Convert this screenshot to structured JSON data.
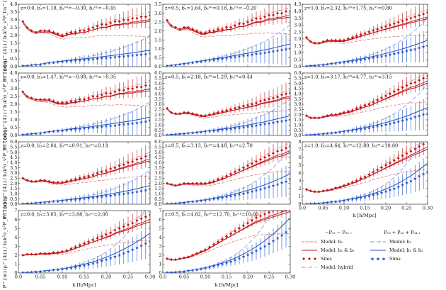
{
  "figure": {
    "x_axis_label": "k [h/Mpc]",
    "x_ticks": [
      "0.0",
      "0.05",
      "0.10",
      "0.15",
      "0.20",
      "0.25",
      "0.30"
    ],
    "y_ticks": [
      "0.0",
      "0.5",
      "1.0",
      "1.5",
      "2.0",
      "2.5",
      "3.0",
      "3.5",
      "4.0"
    ],
    "y_ticks_short": [
      "0.0",
      "0.5",
      "1.0",
      "1.5",
      "2.0",
      "2.5",
      "3.0",
      "3.5"
    ],
    "y_ticks_tall": [
      "0",
      "1",
      "2",
      "3",
      "4",
      "5",
      "6"
    ],
    "row_labels": [
      "P^{m}(μ^{4}) / b₁k²σ_v²P_lin^{dm}",
      "P^{m}(μ^{4}) / b₁k²σ_v²P_lin^{dm}",
      "P^{m}(μ^{4}) / b₁k²σ_v²P_lin^{dm}",
      "P^{m}(μ^{4}) / b₁k²σ_v²P_lin^{dm}"
    ],
    "panels": [
      {
        "label": "z=0.0,  b₁=1.18,  b₂⁰⁰=−0.39,  b₂⁰¹=−0.45",
        "row": 0,
        "col": 0
      },
      {
        "label": "z=0.5,  b₁=1.64,  b₂⁰⁰=0.18,  b₂⁰¹=−0.20",
        "row": 0,
        "col": 1
      },
      {
        "label": "z=1.0,  b₁=2.32,  b₂⁰⁰=1.75,  b₂⁰¹=0.80",
        "row": 0,
        "col": 2
      },
      {
        "label": "z=0.0,  b₁=1.47,  b₂⁰⁰=−0.08,  b₂⁰¹=−0.35",
        "row": 1,
        "col": 0
      },
      {
        "label": "z=0.5,  b₁=2.18,  b₂⁰⁰=1.29,  b₂⁰¹=0.44",
        "row": 1,
        "col": 1
      },
      {
        "label": "z=1.0,  b₁=3.17,  b₂⁰⁰=4.77,  b₂⁰¹=3.15",
        "row": 1,
        "col": 2
      },
      {
        "label": "z=0.0,  b₁=2.04,  b₂⁰⁰=0.91,  b₂⁰¹=0.14",
        "row": 2,
        "col": 0
      },
      {
        "label": "z=0.5,  b₁=3.13,  b₂⁰⁰=4.48,  b₂⁰¹=2.70",
        "row": 2,
        "col": 1
      },
      {
        "label": "z=1.0,  b₁=4.64,  b₂⁰⁰=12.80,  b₂⁰¹=10.80",
        "row": 2,
        "col": 2
      },
      {
        "label": "z=0.0,  b₁=3.05,  b₂⁰⁰=3.88,  b₂⁰¹=2.00",
        "row": 3,
        "col": 0
      },
      {
        "label": "z=0.5,  b₁=4.82,  b₂⁰⁰=12.70,  b₂⁰¹=10.00",
        "row": 3,
        "col": 1
      }
    ]
  },
  "legend": {
    "red_title": "−P₁₂ − P₀₃ :",
    "blue_title": "P₁₃ + P₂₂ + P₀₄ :",
    "red_items": [
      "Model: b₁",
      "Model: b₁ & b₂",
      "Sims",
      "Model: hybrid"
    ],
    "blue_items": [
      "Model: b₁",
      "Model: b₁ & b₂",
      "Sims"
    ],
    "colors": {
      "red": "#c0161c",
      "blue": "#1f4fc4",
      "red_light": "#e07a7a",
      "blue_light": "#7a9ae6"
    }
  },
  "chart_data": {
    "type": "line",
    "title": "",
    "xlabel": "k [h/Mpc]",
    "ylabel": "P^{m}(μ^{4}) / b₁k²σ_v²P_lin^{dm}",
    "xlim": [
      0.0,
      0.3
    ],
    "k_values": [
      0.01,
      0.02,
      0.03,
      0.04,
      0.05,
      0.06,
      0.07,
      0.08,
      0.09,
      0.1,
      0.11,
      0.12,
      0.13,
      0.14,
      0.15,
      0.16,
      0.17,
      0.18,
      0.19,
      0.2,
      0.21,
      0.22,
      0.23,
      0.24,
      0.25,
      0.26,
      0.27,
      0.28,
      0.29,
      0.3
    ],
    "panels": [
      {
        "id": "z0.0_b1.18",
        "ylim": [
          0,
          4
        ],
        "yticks": [
          0,
          0.5,
          1,
          1.5,
          2,
          2.5,
          3,
          3.5,
          4
        ],
        "red_sims": [
          2.9,
          2.5,
          2.3,
          2.2,
          2.3,
          2.3,
          2.3,
          2.2,
          2.1,
          2.0,
          2.1,
          2.2,
          2.2,
          2.3,
          2.3,
          2.4,
          2.5,
          2.6,
          2.7,
          2.7,
          2.8,
          2.9,
          2.9,
          3.0,
          3.0,
          3.1,
          3.1,
          3.2,
          3.2,
          3.3
        ],
        "blue_sims": [
          0.05,
          0.07,
          0.1,
          0.13,
          0.16,
          0.2,
          0.24,
          0.27,
          0.3,
          0.33,
          0.36,
          0.38,
          0.41,
          0.43,
          0.45,
          0.47,
          0.5,
          0.52,
          0.55,
          0.57,
          0.6,
          0.62,
          0.65,
          0.68,
          0.7,
          0.73,
          0.76,
          0.79,
          0.82,
          0.85
        ]
      },
      {
        "id": "z0.5_b1.64",
        "ylim": [
          0,
          3.5
        ],
        "yticks": [
          0,
          0.5,
          1,
          1.5,
          2,
          2.5,
          3,
          3.5
        ],
        "red_sims": [
          2.6,
          2.3,
          2.2,
          2.1,
          2.2,
          2.2,
          2.1,
          2.0,
          1.9,
          1.9,
          2.0,
          2.0,
          2.1,
          2.1,
          2.2,
          2.2,
          2.3,
          2.4,
          2.4,
          2.5,
          2.6,
          2.7,
          2.7,
          2.8,
          2.9,
          2.9,
          3.0,
          3.0,
          3.1,
          3.1
        ],
        "blue_sims": [
          0.05,
          0.08,
          0.1,
          0.14,
          0.17,
          0.2,
          0.24,
          0.27,
          0.3,
          0.33,
          0.36,
          0.39,
          0.42,
          0.45,
          0.48,
          0.52,
          0.55,
          0.58,
          0.62,
          0.65,
          0.68,
          0.72,
          0.75,
          0.79,
          0.82,
          0.86,
          0.9,
          0.94,
          0.98,
          1.02
        ]
      },
      {
        "id": "z1.0_b2.32",
        "ylim": [
          0,
          4.5
        ],
        "yticks": [
          0,
          0.5,
          1,
          1.5,
          2,
          2.5,
          3,
          3.5,
          4,
          4.5
        ],
        "red_sims": [
          2.1,
          1.8,
          1.7,
          1.7,
          1.8,
          1.9,
          1.9,
          1.9,
          1.9,
          1.9,
          2.0,
          2.1,
          2.2,
          2.3,
          2.4,
          2.5,
          2.6,
          2.7,
          2.8,
          2.9,
          3.0,
          3.1,
          3.2,
          3.3,
          3.4,
          3.5,
          3.6,
          3.7,
          3.8,
          3.9
        ],
        "blue_sims": [
          0.05,
          0.07,
          0.09,
          0.12,
          0.15,
          0.18,
          0.22,
          0.25,
          0.29,
          0.33,
          0.37,
          0.41,
          0.46,
          0.5,
          0.55,
          0.6,
          0.65,
          0.7,
          0.76,
          0.82,
          0.88,
          0.94,
          1.0,
          1.07,
          1.14,
          1.21,
          1.28,
          1.36,
          1.44,
          1.52
        ]
      },
      {
        "id": "z0.0_b1.47",
        "ylim": [
          0,
          4
        ],
        "yticks": [
          0,
          0.5,
          1,
          1.5,
          2,
          2.5,
          3,
          3.5,
          4
        ],
        "red_sims": [
          2.8,
          2.5,
          2.4,
          2.3,
          2.3,
          2.3,
          2.3,
          2.2,
          2.1,
          2.1,
          2.1,
          2.2,
          2.2,
          2.3,
          2.3,
          2.4,
          2.5,
          2.5,
          2.6,
          2.7,
          2.7,
          2.8,
          2.9,
          2.9,
          3.0,
          3.0,
          3.1,
          3.1,
          3.2,
          3.2
        ],
        "blue_sims": [
          0.05,
          0.08,
          0.1,
          0.13,
          0.16,
          0.2,
          0.23,
          0.26,
          0.29,
          0.32,
          0.35,
          0.38,
          0.4,
          0.43,
          0.46,
          0.48,
          0.51,
          0.54,
          0.57,
          0.6,
          0.63,
          0.66,
          0.69,
          0.72,
          0.75,
          0.78,
          0.82,
          0.86,
          0.9,
          0.94
        ]
      },
      {
        "id": "z0.5_b2.18",
        "ylim": [
          0,
          6
        ],
        "yticks": [
          0,
          0.5,
          1,
          1.5,
          2,
          2.5,
          3,
          3.5,
          4,
          4.5,
          5,
          5.5,
          6
        ],
        "red_sims": [
          2.6,
          2.2,
          2.1,
          2.1,
          2.2,
          2.2,
          2.1,
          2.0,
          1.9,
          1.9,
          2.0,
          2.1,
          2.2,
          2.3,
          2.4,
          2.5,
          2.6,
          2.7,
          2.8,
          2.9,
          3.0,
          3.1,
          3.3,
          3.4,
          3.5,
          3.6,
          3.7,
          3.9,
          4.0,
          4.1
        ],
        "blue_sims": [
          0.05,
          0.08,
          0.11,
          0.14,
          0.18,
          0.22,
          0.26,
          0.3,
          0.34,
          0.38,
          0.42,
          0.46,
          0.5,
          0.55,
          0.6,
          0.65,
          0.7,
          0.75,
          0.8,
          0.86,
          0.92,
          0.98,
          1.04,
          1.1,
          1.17,
          1.24,
          1.31,
          1.38,
          1.45,
          1.52
        ]
      },
      {
        "id": "z1.0_b3.17",
        "ylim": [
          0,
          6
        ],
        "yticks": [
          0,
          0.5,
          1,
          1.5,
          2,
          2.5,
          3,
          3.5,
          4,
          4.5,
          5,
          5.5,
          6
        ],
        "red_sims": [
          1.9,
          1.7,
          1.7,
          1.7,
          1.8,
          1.9,
          2.0,
          2.0,
          2.1,
          2.2,
          2.3,
          2.4,
          2.6,
          2.7,
          2.9,
          3.0,
          3.2,
          3.4,
          3.6,
          3.8,
          4.0,
          4.2,
          4.4,
          4.6,
          4.8,
          5.0,
          5.1,
          5.3,
          5.5,
          5.7
        ],
        "blue_sims": [
          0.05,
          0.07,
          0.1,
          0.13,
          0.16,
          0.2,
          0.24,
          0.28,
          0.33,
          0.38,
          0.43,
          0.49,
          0.55,
          0.61,
          0.68,
          0.75,
          0.82,
          0.9,
          0.98,
          1.06,
          1.15,
          1.24,
          1.34,
          1.44,
          1.55,
          1.66,
          1.78,
          1.9,
          2.02,
          2.15
        ]
      },
      {
        "id": "z0.0_b2.04",
        "ylim": [
          0,
          6
        ],
        "yticks": [
          0,
          0.5,
          1,
          1.5,
          2,
          2.5,
          3,
          3.5,
          4,
          4.5,
          5,
          5.5,
          6
        ],
        "red_sims": [
          2.5,
          2.3,
          2.2,
          2.2,
          2.3,
          2.3,
          2.2,
          2.1,
          2.1,
          2.1,
          2.2,
          2.3,
          2.4,
          2.5,
          2.6,
          2.7,
          2.8,
          3.0,
          3.1,
          3.2,
          3.4,
          3.5,
          3.7,
          3.8,
          4.0,
          4.1,
          4.3,
          4.4,
          4.6,
          4.7
        ],
        "blue_sims": [
          0.05,
          0.08,
          0.1,
          0.13,
          0.17,
          0.2,
          0.24,
          0.28,
          0.31,
          0.35,
          0.39,
          0.43,
          0.47,
          0.51,
          0.55,
          0.6,
          0.64,
          0.69,
          0.74,
          0.79,
          0.84,
          0.9,
          0.96,
          1.02,
          1.08,
          1.15,
          1.22,
          1.29,
          1.36,
          1.44
        ]
      },
      {
        "id": "z0.5_b3.13",
        "ylim": [
          0,
          6
        ],
        "yticks": [
          0,
          0.5,
          1,
          1.5,
          2,
          2.5,
          3,
          3.5,
          4,
          4.5,
          5,
          5.5,
          6
        ],
        "red_sims": [
          2.0,
          1.9,
          1.8,
          1.9,
          2.0,
          2.0,
          2.0,
          2.0,
          2.0,
          2.0,
          2.1,
          2.2,
          2.4,
          2.5,
          2.7,
          2.9,
          3.1,
          3.3,
          3.5,
          3.7,
          3.9,
          4.1,
          4.3,
          4.5,
          4.7,
          4.9,
          5.1,
          5.2,
          5.4,
          5.6
        ],
        "blue_sims": [
          0.05,
          0.07,
          0.1,
          0.13,
          0.17,
          0.21,
          0.25,
          0.3,
          0.35,
          0.4,
          0.46,
          0.52,
          0.58,
          0.65,
          0.72,
          0.8,
          0.88,
          0.96,
          1.05,
          1.14,
          1.24,
          1.34,
          1.45,
          1.56,
          1.68,
          1.8,
          1.93,
          2.06,
          2.2,
          2.35
        ]
      },
      {
        "id": "z1.0_b4.64",
        "ylim": [
          0,
          8
        ],
        "yticks": [
          0,
          1,
          2,
          3,
          4,
          5,
          6,
          7,
          8
        ],
        "red_sims": [
          1.9,
          1.7,
          1.6,
          1.6,
          1.7,
          1.8,
          1.9,
          2.1,
          2.2,
          2.4,
          2.6,
          2.8,
          3.0,
          3.3,
          3.5,
          3.8,
          4.1,
          4.4,
          4.7,
          5.0,
          5.3,
          5.6,
          5.9,
          6.2,
          6.5,
          6.8,
          7.1,
          7.4,
          7.7,
          8.0
        ],
        "blue_sims": [
          0.05,
          0.07,
          0.1,
          0.14,
          0.18,
          0.23,
          0.28,
          0.34,
          0.41,
          0.48,
          0.56,
          0.65,
          0.74,
          0.84,
          0.95,
          1.07,
          1.2,
          1.34,
          1.5,
          1.67,
          1.85,
          2.05,
          2.26,
          2.5,
          2.75,
          3.0,
          3.3,
          3.6,
          3.9,
          4.2
        ]
      },
      {
        "id": "z0.0_b3.05",
        "ylim": [
          0,
          7
        ],
        "yticks": [
          0,
          1,
          2,
          3,
          4,
          5,
          6,
          7
        ],
        "red_sims": [
          2.0,
          2.1,
          2.1,
          2.1,
          2.2,
          2.2,
          2.2,
          2.3,
          2.3,
          2.4,
          2.5,
          2.7,
          2.9,
          3.1,
          3.3,
          3.5,
          3.7,
          3.9,
          4.1,
          4.3,
          4.5,
          4.8,
          5.0,
          5.2,
          5.4,
          5.6,
          5.9,
          6.1,
          6.3,
          6.5
        ],
        "blue_sims": [
          0.05,
          0.08,
          0.11,
          0.15,
          0.19,
          0.23,
          0.28,
          0.33,
          0.39,
          0.45,
          0.52,
          0.6,
          0.68,
          0.77,
          0.87,
          0.98,
          1.1,
          1.23,
          1.37,
          1.52,
          1.68,
          1.85,
          2.03,
          2.22,
          2.42,
          2.63,
          2.85,
          3.08,
          3.32,
          3.57
        ]
      },
      {
        "id": "z0.5_b4.82",
        "ylim": [
          0,
          7
        ],
        "yticks": [
          0,
          1,
          2,
          3,
          4,
          5,
          6,
          7
        ],
        "red_sims": [
          1.6,
          1.5,
          1.5,
          1.6,
          1.7,
          1.8,
          2.0,
          2.2,
          2.4,
          2.6,
          2.9,
          3.2,
          3.5,
          3.8,
          4.1,
          4.4,
          4.7,
          5.0,
          5.3,
          5.6,
          5.9,
          6.2,
          6.4,
          6.6,
          6.8,
          7.0,
          7.2,
          7.4,
          7.6,
          7.8
        ],
        "blue_sims": [
          0.05,
          0.07,
          0.1,
          0.14,
          0.19,
          0.25,
          0.31,
          0.38,
          0.46,
          0.55,
          0.65,
          0.76,
          0.88,
          1.01,
          1.15,
          1.3,
          1.47,
          1.65,
          1.84,
          2.05,
          2.27,
          2.5,
          2.75,
          3.02,
          3.3,
          3.6,
          3.92,
          4.25,
          4.6,
          4.97
        ]
      }
    ]
  }
}
